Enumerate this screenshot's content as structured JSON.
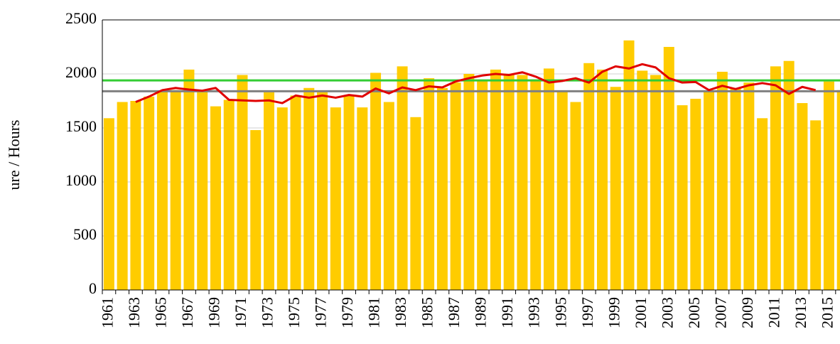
{
  "chart_data": {
    "type": "bar",
    "y_label": "ure / Hours",
    "categories": [
      "1961",
      null,
      "1963",
      null,
      "1965",
      null,
      "1967",
      null,
      "1969",
      null,
      "1971",
      null,
      "1973",
      null,
      "1975",
      null,
      "1977",
      null,
      "1979",
      null,
      "1981",
      null,
      "1983",
      null,
      "1985",
      null,
      "1987",
      null,
      "1989",
      null,
      "1991",
      null,
      "1993",
      null,
      "1995",
      null,
      "1997",
      null,
      "1999",
      null,
      "2001",
      null,
      "2003",
      null,
      "2005",
      null,
      "2007",
      null,
      "2009",
      null,
      "2011",
      null,
      "2013",
      null,
      "2015",
      null
    ],
    "series": [
      {
        "type": "bar",
        "color": "#ffcc00",
        "values": [
          1590,
          1740,
          1750,
          1790,
          1840,
          1850,
          2040,
          1850,
          1700,
          1760,
          1990,
          1480,
          1830,
          1690,
          1800,
          1870,
          1830,
          1690,
          1800,
          1690,
          2010,
          1740,
          2070,
          1600,
          1960,
          1870,
          1920,
          2000,
          1940,
          2040,
          1990,
          1990,
          1950,
          2050,
          1840,
          1740,
          2100,
          2040,
          1880,
          2310,
          2030,
          1990,
          2250,
          1710,
          1770,
          1840,
          2020,
          1870,
          1920,
          1590,
          2070,
          2120,
          1730,
          1570,
          1930,
          1850
        ]
      },
      {
        "type": "line",
        "color": "#e00000",
        "values": [
          null,
          null,
          1740,
          1790,
          1850,
          1870,
          1855,
          1845,
          1870,
          1760,
          1755,
          1750,
          1755,
          1730,
          1800,
          1780,
          1800,
          1780,
          1805,
          1790,
          1865,
          1820,
          1875,
          1850,
          1885,
          1875,
          1930,
          1960,
          1985,
          2000,
          1990,
          2015,
          1975,
          1920,
          1935,
          1960,
          1920,
          2020,
          2070,
          2050,
          2090,
          2060,
          1960,
          1920,
          1925,
          1850,
          1890,
          1860,
          1895,
          1915,
          1895,
          1815,
          1880,
          1850,
          null,
          null
        ]
      }
    ],
    "reference_lines": [
      {
        "value": 1940,
        "color": "#33cc33"
      },
      {
        "value": 1840,
        "color": "#808080"
      }
    ],
    "ylim": [
      0,
      2500
    ],
    "yticks": [
      0,
      500,
      1000,
      1500,
      2000,
      2500
    ],
    "grid": true
  }
}
